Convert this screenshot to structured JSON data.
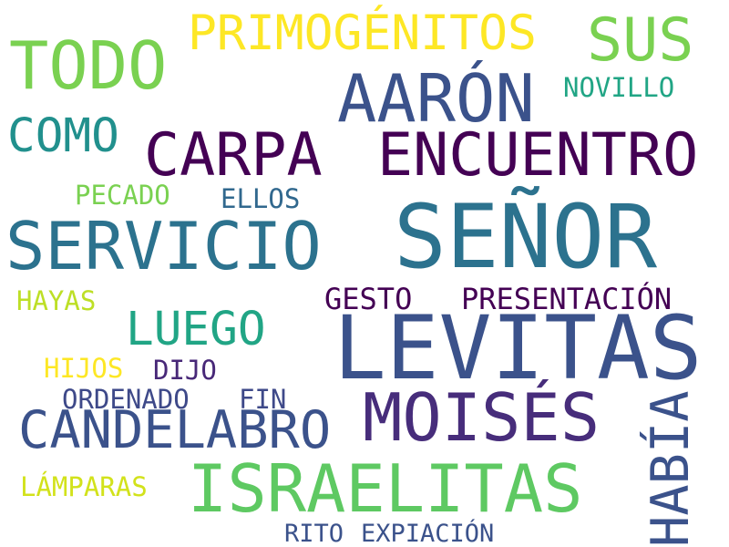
{
  "words": [
    {
      "text": "LEVITAS",
      "color": "#3b528b"
    },
    {
      "text": "SEÑOR",
      "color": "#2c728e"
    },
    {
      "text": "ISRAELITAS",
      "color": "#5ec962"
    },
    {
      "text": "MOISÉS",
      "color": "#472d7b"
    },
    {
      "text": "SERVICIO",
      "color": "#2c728e"
    },
    {
      "text": "AARÓN",
      "color": "#3b528b"
    },
    {
      "text": "ENCUENTRO",
      "color": "#440154"
    },
    {
      "text": "TODO",
      "color": "#7ad151"
    },
    {
      "text": "CARPA",
      "color": "#440154"
    },
    {
      "text": "CANDELABRO",
      "color": "#3b528b"
    },
    {
      "text": "SUS",
      "color": "#7ad151"
    },
    {
      "text": "HABÍA",
      "color": "#3b528b"
    },
    {
      "text": "PRIMOGÉNITOS",
      "color": "#fde725"
    },
    {
      "text": "LUEGO",
      "color": "#21a585"
    },
    {
      "text": "COMO",
      "color": "#21908d"
    },
    {
      "text": "GESTO",
      "color": "#440154"
    },
    {
      "text": "PRESENTACIÓN",
      "color": "#440154"
    },
    {
      "text": "NOVILLO",
      "color": "#21a585"
    },
    {
      "text": "PECADO",
      "color": "#7ad151"
    },
    {
      "text": "ELLOS",
      "color": "#31688e"
    },
    {
      "text": "HAYAS",
      "color": "#bddf26"
    },
    {
      "text": "HIJOS",
      "color": "#fde725"
    },
    {
      "text": "DIJO",
      "color": "#482878"
    },
    {
      "text": "ORDENADO",
      "color": "#3e4989"
    },
    {
      "text": "FIN",
      "color": "#3e4989"
    },
    {
      "text": "LÁMPARAS",
      "color": "#d2e21b"
    },
    {
      "text": "RITO",
      "color": "#3b528b"
    },
    {
      "text": "EXPIACIÓN",
      "color": "#3b528b"
    }
  ]
}
